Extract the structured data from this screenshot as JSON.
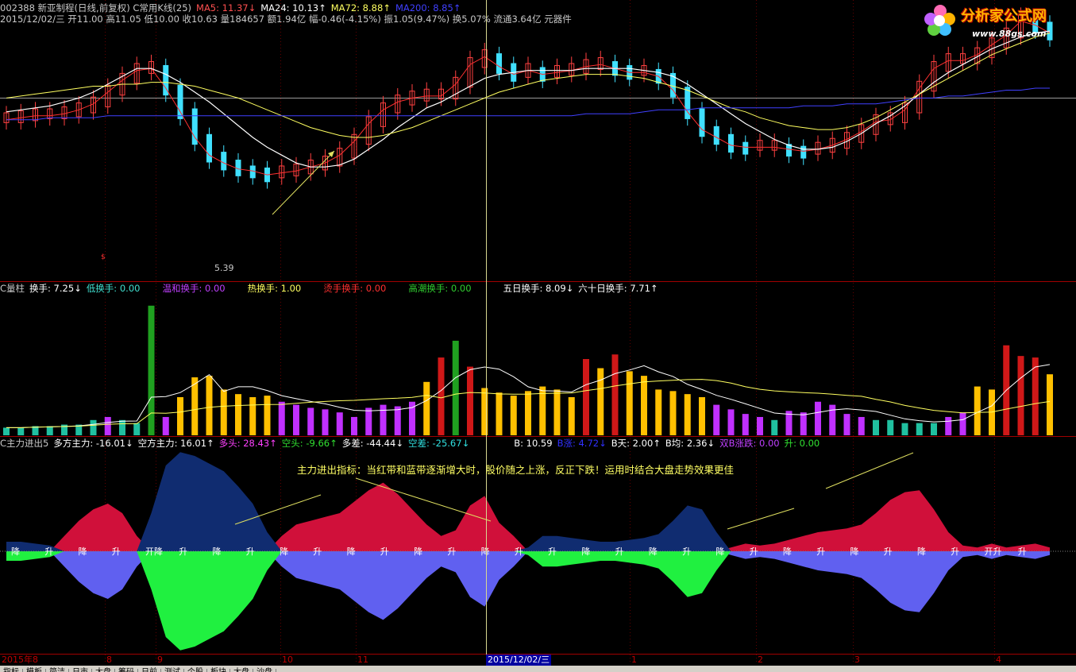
{
  "header": {
    "line1": [
      {
        "text": "002388 新亚制程(日线,前复权) C常用K线(25)",
        "color": "#c8c8c8"
      },
      {
        "text": "MA5: 11.37↓",
        "color": "#ff5050"
      },
      {
        "text": "MA24: 10.13↑",
        "color": "#ffffff"
      },
      {
        "text": "MA72: 8.88↑",
        "color": "#ffff60"
      },
      {
        "text": "MA200: 8.85↑",
        "color": "#4040ff"
      }
    ],
    "line2": "2015/12/02/三 开11.00 高11.05 低10.00 收10.63 量184657 额1.94亿 幅-0.46(-4.15%) 振1.05(9.47%) 换5.07% 流通3.64亿 元器件"
  },
  "watermark": {
    "title": "分析家公式网",
    "url": "www.88gs.com"
  },
  "price_panel": {
    "low_label": "5.39",
    "marker": "$"
  },
  "turnover_header": [
    {
      "text": "C量柱",
      "color": "#c8c8c8"
    },
    {
      "text": "换手: 7.25↓",
      "color": "#ffffff"
    },
    {
      "text": "低换手: 0.00",
      "color": "#40e0d0"
    },
    {
      "text": "温和换手: 0.00",
      "color": "#c040ff"
    },
    {
      "text": "热换手: 1.00",
      "color": "#ffff60"
    },
    {
      "text": "烫手换手: 0.00",
      "color": "#ff3030"
    },
    {
      "text": "高潮换手: 0.00",
      "color": "#30d030"
    },
    {
      "text": "五日换手: 8.09↓",
      "color": "#ffffff"
    },
    {
      "text": "六十日换手: 7.71↑",
      "color": "#ffffff"
    }
  ],
  "flow_header": [
    {
      "text": "C主力进出5",
      "color": "#c8c8c8"
    },
    {
      "text": "多方主力: -16.01↓",
      "color": "#ffffff"
    },
    {
      "text": "空方主力: 16.01↑",
      "color": "#ffffff"
    },
    {
      "text": "多头: 28.43↑",
      "color": "#ff40ff"
    },
    {
      "text": "空头: -9.66↑",
      "color": "#30e030"
    },
    {
      "text": "多差: -44.44↓",
      "color": "#ffffff"
    },
    {
      "text": "空差: -25.67↓",
      "color": "#30e0e0"
    },
    {
      "text": "B: 10.59",
      "color": "#ffffff"
    },
    {
      "text": "B涨: 4.72↓",
      "color": "#3030ff"
    },
    {
      "text": "B天: 2.00↑",
      "color": "#ffffff"
    },
    {
      "text": "B均: 2.36↓",
      "color": "#ffffff"
    },
    {
      "text": "双B涨跌: 0.00",
      "color": "#c040ff"
    },
    {
      "text": "升: 0.00",
      "color": "#30e030"
    }
  ],
  "annotation": "主力进出指标：当红带和蓝带逐渐增大时，股价随之上涨，反正下跌！运用时结合大盘走势效果更佳",
  "signal_labels": [
    "降",
    "升",
    "降",
    "升",
    "开降",
    "升",
    "降",
    "升",
    "降",
    "升",
    "降",
    "升",
    "降",
    "升",
    "降",
    "升",
    "升",
    "降",
    "升",
    "降",
    "升",
    "降",
    "升",
    "降",
    "升",
    "降",
    "升",
    "降",
    "升",
    "开升",
    "升"
  ],
  "x_axis": {
    "ticks": [
      {
        "label": "2015年8",
        "x": 0
      },
      {
        "label": "8",
        "x": 132
      },
      {
        "label": "9",
        "x": 196
      },
      {
        "label": "10",
        "x": 353
      },
      {
        "label": "11",
        "x": 448
      },
      {
        "label": "1",
        "x": 793
      },
      {
        "label": "2",
        "x": 952
      },
      {
        "label": "3",
        "x": 1074
      },
      {
        "label": "4",
        "x": 1252
      }
    ],
    "cursor_date": "2015/12/02/三"
  },
  "tabs": [
    "指标",
    "模板",
    "简洁",
    "日市",
    "大盘",
    "筹码",
    "日前",
    "测试",
    "个股",
    "板块",
    "大盘",
    "沙盘"
  ],
  "colors": {
    "up": "#ff4040",
    "down": "#40e0ff",
    "ma5": "#ff3030",
    "ma24": "#ffffff",
    "ma72": "#ffff60",
    "ma200": "#4040ff"
  },
  "chart_data": {
    "type": "candlestick",
    "series": [
      {
        "name": "MA5",
        "values": [
          8.4,
          8.5,
          8.6,
          8.6,
          8.7,
          8.9,
          9.2,
          9.8,
          10.4,
          10.9,
          11.0,
          10.0,
          8.8,
          7.5,
          6.6,
          6.2,
          5.9,
          5.8,
          5.6,
          5.7,
          5.8,
          6.0,
          6.2,
          6.6,
          7.3,
          8.2,
          8.9,
          9.3,
          9.5,
          9.6,
          9.6,
          10.2,
          11.2,
          11.6,
          11.1,
          10.7,
          10.9,
          10.7,
          10.8,
          10.9,
          11.1,
          11.2,
          11.0,
          10.8,
          10.8,
          10.6,
          9.9,
          8.8,
          7.9,
          7.5,
          7.1,
          7.0,
          7.0,
          7.0,
          6.9,
          6.8,
          6.9,
          7.1,
          7.4,
          7.8,
          8.3,
          8.4,
          8.9,
          10.0,
          11.0,
          11.4,
          11.4,
          11.7,
          12.2,
          12.7,
          13.4,
          13.2,
          12.8
        ]
      },
      {
        "name": "MA24",
        "values": [
          8.8,
          8.9,
          9.0,
          9.1,
          9.3,
          9.5,
          9.8,
          10.2,
          10.6,
          11.0,
          11.0,
          10.7,
          10.3,
          9.8,
          9.3,
          8.7,
          8.1,
          7.5,
          7.0,
          6.6,
          6.2,
          6.0,
          6.0,
          6.1,
          6.4,
          6.9,
          7.4,
          8.0,
          8.5,
          9.0,
          9.3,
          9.7,
          10.1,
          10.5,
          10.7,
          10.8,
          10.9,
          10.9,
          10.9,
          10.9,
          11.0,
          11.0,
          11.0,
          11.0,
          10.9,
          10.8,
          10.6,
          10.2,
          9.7,
          9.2,
          8.7,
          8.2,
          7.8,
          7.4,
          7.1,
          6.9,
          6.9,
          7.0,
          7.3,
          7.7,
          8.2,
          8.6,
          9.1,
          9.7,
          10.3,
          10.8,
          11.2,
          11.6,
          12.0,
          12.3,
          12.6,
          12.8,
          12.9
        ]
      },
      {
        "name": "MA72",
        "values": [
          9.5,
          9.6,
          9.7,
          9.8,
          9.9,
          10.0,
          10.1,
          10.1,
          10.2,
          10.2,
          10.3,
          10.3,
          10.2,
          10.1,
          9.9,
          9.7,
          9.5,
          9.2,
          8.9,
          8.6,
          8.3,
          8.0,
          7.8,
          7.6,
          7.5,
          7.5,
          7.6,
          7.8,
          8.0,
          8.3,
          8.6,
          8.9,
          9.2,
          9.5,
          9.8,
          10.0,
          10.2,
          10.4,
          10.5,
          10.6,
          10.7,
          10.7,
          10.7,
          10.6,
          10.5,
          10.3,
          10.1,
          9.9,
          9.6,
          9.3,
          9.0,
          8.8,
          8.5,
          8.3,
          8.1,
          8.0,
          7.9,
          7.9,
          8.0,
          8.2,
          8.5,
          8.9,
          9.3,
          9.7,
          10.1,
          10.5,
          10.9,
          11.3,
          11.7,
          12.0,
          12.3,
          12.6,
          12.8
        ]
      },
      {
        "name": "MA200",
        "values": [
          8.4,
          8.4,
          8.4,
          8.5,
          8.5,
          8.5,
          8.5,
          8.6,
          8.6,
          8.6,
          8.6,
          8.6,
          8.6,
          8.6,
          8.6,
          8.6,
          8.6,
          8.6,
          8.6,
          8.6,
          8.6,
          8.6,
          8.6,
          8.6,
          8.6,
          8.6,
          8.6,
          8.6,
          8.6,
          8.6,
          8.6,
          8.6,
          8.6,
          8.6,
          8.6,
          8.6,
          8.6,
          8.6,
          8.6,
          8.6,
          8.7,
          8.7,
          8.7,
          8.7,
          8.8,
          8.9,
          8.9,
          8.9,
          9.0,
          9.0,
          9.0,
          9.0,
          9.0,
          9.0,
          9.0,
          9.1,
          9.1,
          9.1,
          9.2,
          9.2,
          9.2,
          9.3,
          9.4,
          9.5,
          9.5,
          9.6,
          9.6,
          9.7,
          9.8,
          9.9,
          9.9,
          10.0,
          10.0
        ]
      },
      {
        "name": "换手",
        "values": [
          0.5,
          0.5,
          0.6,
          0.6,
          0.7,
          0.7,
          1.0,
          1.2,
          1.0,
          0.8,
          8.5,
          1.2,
          2.5,
          3.8,
          3.9,
          3.0,
          2.7,
          2.5,
          2.6,
          2.2,
          2.0,
          1.8,
          1.7,
          1.5,
          1.2,
          1.8,
          2.0,
          1.9,
          2.2,
          3.5,
          5.1,
          6.2,
          4.5,
          3.1,
          2.8,
          2.6,
          2.9,
          3.2,
          3.0,
          2.5,
          5.0,
          4.4,
          5.3,
          4.2,
          3.9,
          3.0,
          2.9,
          2.7,
          2.5,
          2.0,
          1.7,
          1.4,
          1.2,
          1.0,
          1.6,
          1.5,
          2.2,
          2.0,
          1.4,
          1.2,
          1.0,
          1.0,
          0.8,
          0.8,
          0.8,
          1.2,
          1.5,
          3.2,
          3.0,
          5.9,
          5.2,
          5.1,
          4.0
        ]
      },
      {
        "name": "主力进出",
        "values": [
          -0.5,
          -0.5,
          -0.4,
          -0.3,
          0.8,
          1.6,
          2.2,
          2.5,
          2.0,
          0.8,
          -2.0,
          -4.5,
          -5.2,
          -5.0,
          -4.6,
          -4.2,
          -3.4,
          -2.5,
          -1.0,
          0.8,
          1.4,
          1.6,
          1.8,
          2.0,
          2.6,
          3.2,
          3.6,
          3.0,
          2.2,
          1.4,
          0.8,
          1.1,
          2.4,
          2.9,
          1.5,
          0.8,
          -0.2,
          -0.8,
          -0.8,
          -0.7,
          -0.6,
          -0.5,
          -0.5,
          -0.6,
          -0.7,
          -0.9,
          -1.6,
          -2.4,
          -2.2,
          -1.0,
          0.2,
          0.4,
          0.3,
          0.4,
          0.6,
          0.8,
          1.0,
          1.1,
          1.2,
          1.4,
          2.0,
          2.7,
          3.1,
          3.2,
          2.2,
          1.0,
          0.3,
          0.2,
          0.4,
          0.2,
          0.3,
          0.4,
          0.2
        ]
      }
    ],
    "highlight": {
      "date": "2015/12/02/三",
      "open": 11.0,
      "high": 11.05,
      "low": 10.0,
      "close": 10.63,
      "volume": 184657
    }
  }
}
